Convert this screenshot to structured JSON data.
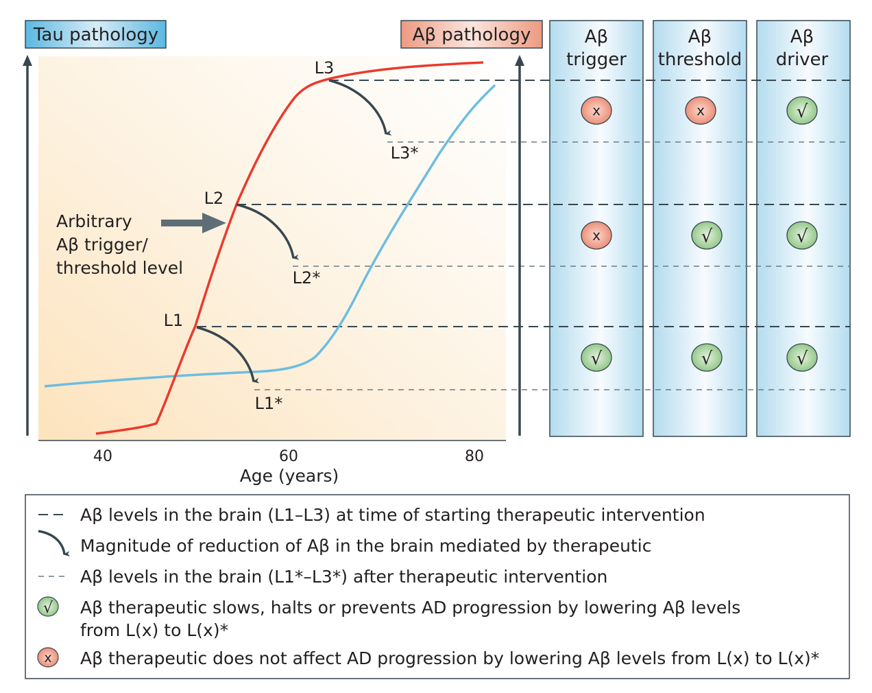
{
  "labels": {
    "tau_pathology": "Tau pathology",
    "abeta_pathology": "Aβ pathology",
    "x_axis_title": "Age (years)",
    "x_ticks": [
      "40",
      "60",
      "80"
    ],
    "levels": {
      "L1": "L1",
      "L2": "L2",
      "L3": "L3",
      "L1s": "L1*",
      "L2s": "L2*",
      "L3s": "L3*"
    },
    "annotation": [
      "Arbitrary",
      "Aβ trigger/",
      "threshold level"
    ]
  },
  "columns": [
    {
      "title1": "Aβ",
      "title2": "trigger",
      "results": [
        "x",
        "x",
        "check"
      ]
    },
    {
      "title1": "Aβ",
      "title2": "threshold",
      "results": [
        "x",
        "check",
        "check"
      ]
    },
    {
      "title1": "Aβ",
      "title2": "driver",
      "results": [
        "check",
        "check",
        "check"
      ]
    }
  ],
  "colors": {
    "tau_curve": "#6cbde0",
    "abeta_curve": "#ea3a2d",
    "check_fill": "#9fcf94",
    "x_fill": "#ef9a83",
    "axis": "#37474f"
  },
  "legend": {
    "dashed": "Aβ levels in the brain (L1–L3) at time of  starting  therapeutic intervention",
    "arrow": "Magnitude of reduction of Aβ in the brain mediated by  therapeutic",
    "dotted": "Aβ levels in the brain (L1*–L3*) after therapeutic intervention",
    "check_line1": "Aβ therapeutic slows, halts or prevents AD progression by lowering Aβ levels",
    "check_line2": "from L(x) to L(x)*",
    "x": "Aβ therapeutic does not affect AD progression by lowering Aβ levels from L(x) to L(x)*",
    "check_symbol": "√",
    "x_symbol": "x"
  }
}
